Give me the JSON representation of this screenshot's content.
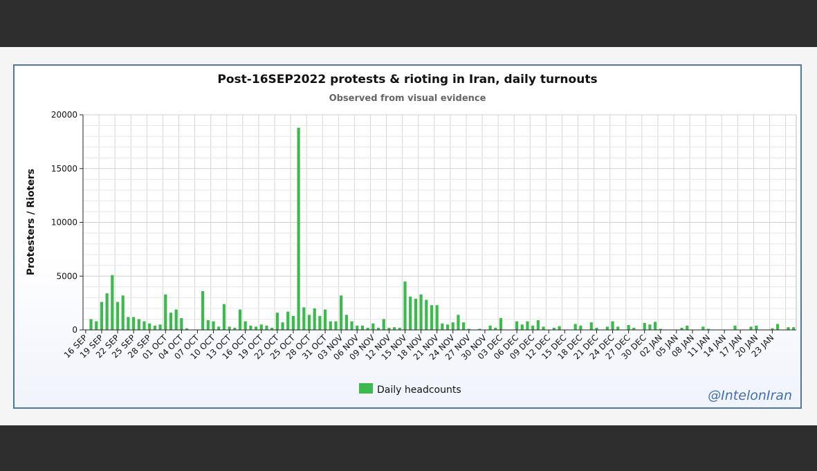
{
  "chart_data": {
    "type": "bar",
    "title": "Post-16SEP2022 protests & rioting in Iran, daily turnouts",
    "subtitle": "Observed from visual evidence",
    "xlabel": "",
    "ylabel": "Protesters / Rioters",
    "ylim": [
      0,
      20000
    ],
    "yticks": [
      0,
      5000,
      10000,
      15000,
      20000
    ],
    "grid": true,
    "legend_position": "bottom-center",
    "series_color": "#3dba4e",
    "x_tick_labels": [
      "16 SEP",
      "19 SEP",
      "22 SEP",
      "25 SEP",
      "28 SEP",
      "01 OCT",
      "04 OCT",
      "07 OCT",
      "10 OCT",
      "13 OCT",
      "16 OCT",
      "19 OCT",
      "22 OCT",
      "25 OCT",
      "28 OCT",
      "31 OCT",
      "03 NOV",
      "06 NOV",
      "09 NOV",
      "12 NOV",
      "15 NOV",
      "18 NOV",
      "21 NOV",
      "24 NOV",
      "27 NOV",
      "30 NOV",
      "03 DEC",
      "06 DEC",
      "09 DEC",
      "12 DEC",
      "15 DEC",
      "18 DEC",
      "21 DEC",
      "24 DEC",
      "27 DEC",
      "30 DEC",
      "02 JAN",
      "05 JAN",
      "08 JAN",
      "11 JAN",
      "14 JAN",
      "17 JAN",
      "20 JAN",
      "23 JAN"
    ],
    "series": [
      {
        "name": "Daily headcounts",
        "values": [
          0,
          1000,
          800,
          2600,
          3400,
          5100,
          2600,
          3200,
          1200,
          1200,
          1000,
          800,
          600,
          400,
          500,
          3300,
          1600,
          1900,
          1100,
          150,
          0,
          0,
          3600,
          900,
          800,
          300,
          2400,
          300,
          200,
          1900,
          800,
          400,
          300,
          500,
          400,
          200,
          1600,
          700,
          1700,
          1300,
          18800,
          2100,
          1400,
          2000,
          1300,
          1900,
          800,
          800,
          3200,
          1400,
          800,
          400,
          400,
          200,
          600,
          200,
          1000,
          200,
          250,
          200,
          4500,
          3100,
          2900,
          3300,
          2800,
          2300,
          2300,
          600,
          500,
          700,
          1400,
          700,
          100,
          0,
          100,
          0,
          400,
          200,
          1100,
          0,
          0,
          800,
          500,
          800,
          400,
          900,
          300,
          0,
          200,
          350,
          0,
          0,
          550,
          400,
          0,
          700,
          200,
          0,
          300,
          800,
          300,
          0,
          450,
          200,
          0,
          650,
          500,
          750,
          100,
          0,
          0,
          0,
          200,
          400,
          0,
          0,
          300,
          100,
          0,
          0,
          0,
          0,
          400,
          0,
          0,
          300,
          400,
          0,
          0,
          150,
          550,
          0,
          250,
          250
        ]
      }
    ]
  },
  "watermark": "@IntelonIran"
}
